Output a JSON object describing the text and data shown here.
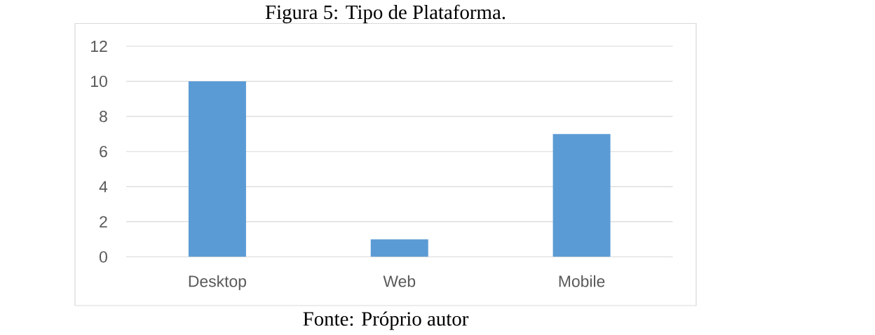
{
  "chart_data": {
    "type": "bar",
    "title": "Figura 5: Tipo de Plataforma.",
    "categories": [
      "Desktop",
      "Web",
      "Mobile"
    ],
    "values": [
      10,
      1,
      7
    ],
    "color": "#5b9bd5",
    "ylim": [
      0,
      12
    ],
    "yticks": [
      0,
      2,
      4,
      6,
      8,
      10,
      12
    ],
    "grid": "y",
    "annotations": [
      "Fonte: Próprio autor"
    ]
  }
}
